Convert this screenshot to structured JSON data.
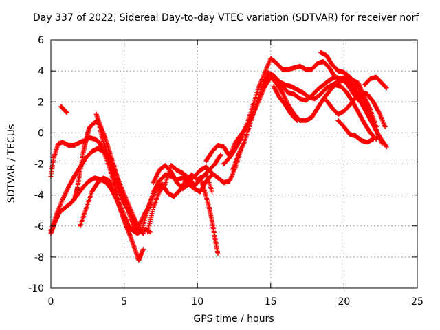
{
  "chart_data": {
    "type": "scatter",
    "title": "Day 337 of 2022, Sidereal Day-to-day VTEC variation (SDTVAR) for receiver norf",
    "xlabel": "GPS time / hours",
    "ylabel": "SDTVAR / TECUs",
    "xlim": [
      0,
      25
    ],
    "ylim": [
      -10,
      6
    ],
    "xticks": [
      0,
      5,
      10,
      15,
      20,
      25
    ],
    "yticks": [
      -10,
      -8,
      -6,
      -4,
      -2,
      0,
      2,
      4,
      6
    ],
    "grid": true,
    "marker": "+",
    "color": "#ff0000",
    "series": [
      {
        "x": [
          0.0,
          0.2,
          0.5,
          0.8,
          1.2,
          1.6,
          2.0,
          2.3,
          2.6,
          3.0,
          3.3,
          3.6,
          4.0,
          4.3,
          4.6,
          5.0,
          5.3,
          5.6,
          5.9,
          6.2,
          6.5,
          6.8
        ],
        "y": [
          -2.8,
          -1.6,
          -0.7,
          -0.6,
          -0.8,
          -0.8,
          -0.6,
          -0.5,
          -0.3,
          -0.4,
          -0.6,
          -1.2,
          -2.2,
          -3.2,
          -4.3,
          -5.3,
          -6.0,
          -6.3,
          -6.5,
          -6.3,
          -6.2,
          -6.4
        ]
      },
      {
        "x": [
          0.0,
          0.3,
          0.6,
          1.0,
          1.4,
          1.8,
          2.2,
          2.6,
          3.0,
          3.4,
          3.8,
          4.1,
          4.5,
          4.8,
          5.1,
          5.4,
          5.7,
          6.0,
          6.3
        ],
        "y": [
          -6.5,
          -5.7,
          -5.1,
          -4.8,
          -4.5,
          -4.0,
          -3.5,
          -3.1,
          -2.9,
          -3.0,
          -3.2,
          -3.6,
          -4.3,
          -5.1,
          -5.9,
          -6.6,
          -7.4,
          -8.2,
          -7.5
        ]
      },
      {
        "x": [
          0.0,
          0.4,
          0.8,
          1.2,
          1.6,
          2.0,
          2.4,
          2.8,
          3.2,
          3.6,
          4.0,
          4.4,
          4.8,
          5.2,
          5.6,
          6.0,
          6.3
        ],
        "y": [
          -6.3,
          -5.2,
          -4.3,
          -3.5,
          -2.8,
          -2.2,
          -1.6,
          -1.2,
          -1.0,
          -1.2,
          -1.7,
          -2.5,
          -3.5,
          -4.4,
          -5.3,
          -6.1,
          -6.5
        ]
      },
      {
        "x": [
          0.7,
          0.9,
          1.1
        ],
        "y": [
          1.7,
          1.5,
          1.3
        ]
      },
      {
        "x": [
          1.6,
          1.8,
          2.0,
          2.2,
          2.4,
          2.6,
          2.9,
          3.2,
          3.5,
          3.8,
          4.1,
          4.4,
          4.7,
          5.0,
          5.3,
          5.6,
          5.9,
          6.2
        ],
        "y": [
          -4.3,
          -3.6,
          -2.5,
          -1.3,
          -0.5,
          0.3,
          0.6,
          0.8,
          -0.3,
          -1.2,
          -2.0,
          -3.0,
          -3.8,
          -4.5,
          -5.0,
          -5.5,
          -6.0,
          -6.4
        ]
      },
      {
        "x": [
          2.0,
          2.4,
          2.8,
          3.2,
          3.6,
          4.0,
          4.4,
          4.8,
          5.2,
          5.6,
          6.0,
          6.4,
          6.8
        ],
        "y": [
          -6.0,
          -4.9,
          -3.8,
          -3.2,
          -2.9,
          -3.1,
          -4.0,
          -5.0,
          -5.9,
          -6.3,
          -6.0,
          -5.2,
          -4.6
        ]
      },
      {
        "x": [
          3.1,
          3.4,
          3.7,
          4.0,
          4.3,
          4.6,
          4.9,
          5.2,
          5.5,
          5.8
        ],
        "y": [
          1.2,
          0.4,
          -0.3,
          -1.2,
          -2.1,
          -3.1,
          -4.0,
          -4.8,
          -5.6,
          -6.3
        ]
      },
      {
        "x": [
          6.2,
          6.6,
          7.0,
          7.4,
          7.8,
          8.2,
          8.6,
          9.0,
          9.4,
          9.8,
          10.2,
          10.6,
          11.0,
          11.4,
          11.8,
          12.2,
          12.6,
          13.0
        ],
        "y": [
          -6.3,
          -5.0,
          -3.8,
          -3.1,
          -2.7,
          -2.8,
          -3.0,
          -2.9,
          -3.1,
          -2.8,
          -2.4,
          -2.2,
          -2.6,
          -2.9,
          -3.2,
          -3.1,
          -2.2,
          -1.0
        ]
      },
      {
        "x": [
          6.4,
          6.8,
          7.2,
          7.6,
          8.0,
          8.4,
          8.8,
          9.2,
          9.6,
          10.0,
          10.4,
          10.8,
          11.2,
          11.6
        ],
        "y": [
          -5.4,
          -4.4,
          -3.6,
          -3.3,
          -3.9,
          -4.1,
          -3.7,
          -3.1,
          -2.7,
          -3.0,
          -2.8,
          -2.4,
          -2.0,
          -1.4
        ]
      },
      {
        "x": [
          6.6,
          7.0,
          7.4,
          7.8,
          8.2,
          8.6,
          9.0,
          9.4,
          9.8,
          10.2,
          10.6,
          11.0
        ],
        "y": [
          -6.4,
          -4.8,
          -3.8,
          -3.3,
          -2.1,
          -2.4,
          -2.6,
          -2.9,
          -3.4,
          -3.0,
          -2.6,
          -3.8
        ]
      },
      {
        "x": [
          7.0,
          7.4,
          7.8,
          8.2,
          8.6,
          9.0,
          9.4,
          9.8,
          10.2,
          10.6,
          11.0
        ],
        "y": [
          -3.2,
          -2.4,
          -2.1,
          -2.5,
          -3.2,
          -3.6,
          -3.3,
          -3.6,
          -3.8,
          -3.1,
          -2.7
        ]
      },
      {
        "x": [
          10.2,
          10.5,
          10.8,
          11.0,
          11.2,
          11.4
        ],
        "y": [
          -2.9,
          -3.8,
          -4.8,
          -5.7,
          -6.8,
          -7.8
        ]
      },
      {
        "x": [
          10.6,
          11.0,
          11.4,
          11.8,
          12.2,
          12.6,
          13.0,
          13.4,
          13.8,
          14.2,
          14.6,
          15.0,
          15.4,
          15.8,
          16.2,
          16.6,
          17.0,
          17.4,
          17.8,
          18.2,
          18.6,
          19.0,
          19.4,
          19.8,
          20.2,
          20.6,
          21.0
        ],
        "y": [
          -1.8,
          -1.2,
          -0.8,
          -0.9,
          -1.5,
          -0.6,
          -0.1,
          0.5,
          1.2,
          2.1,
          3.0,
          3.6,
          3.2,
          3.0,
          2.6,
          2.5,
          2.2,
          2.1,
          2.4,
          2.8,
          3.1,
          3.4,
          3.6,
          3.5,
          3.2,
          2.6,
          2.1
        ]
      },
      {
        "x": [
          11.8,
          12.2,
          12.6,
          13.0,
          13.4,
          13.8,
          14.2,
          14.6,
          15.0,
          15.4,
          15.8,
          16.2,
          16.6,
          17.0,
          17.4,
          17.8,
          18.2,
          18.6,
          19.0,
          19.4,
          19.8,
          20.2,
          20.6,
          21.0,
          21.4,
          21.8,
          22.2,
          22.6
        ],
        "y": [
          -2.0,
          -1.6,
          -1.0,
          -0.3,
          0.6,
          1.8,
          3.0,
          3.9,
          4.8,
          4.5,
          4.1,
          4.1,
          4.2,
          4.3,
          4.1,
          4.1,
          4.5,
          4.6,
          4.2,
          3.6,
          3.5,
          3.6,
          3.1,
          2.3,
          1.6,
          0.9,
          0.2,
          -0.7
        ]
      },
      {
        "x": [
          12.4,
          12.8,
          13.2,
          13.6,
          14.0,
          14.4,
          14.8,
          15.2,
          15.6,
          16.0,
          16.4,
          16.8,
          17.2,
          17.6,
          18.0,
          18.4,
          18.8,
          19.2,
          19.6,
          20.0,
          20.4,
          20.8,
          21.2,
          21.6,
          22.0,
          22.4,
          22.9
        ],
        "y": [
          -2.4,
          -1.4,
          -0.6,
          0.6,
          1.8,
          3.0,
          3.9,
          3.7,
          3.3,
          3.1,
          3.0,
          2.8,
          2.6,
          2.3,
          2.2,
          2.5,
          2.9,
          3.1,
          3.3,
          3.4,
          3.1,
          2.6,
          1.9,
          1.2,
          0.5,
          -0.2,
          -0.9
        ]
      },
      {
        "x": [
          14.6,
          15.0,
          15.4,
          15.8,
          16.2,
          16.6,
          17.0,
          17.4,
          17.8,
          18.2,
          18.6,
          19.0,
          19.4,
          19.8,
          20.2,
          20.6,
          21.0,
          21.4,
          21.8,
          22.2
        ],
        "y": [
          3.3,
          3.8,
          3.2,
          2.6,
          1.8,
          1.2,
          0.8,
          0.8,
          1.0,
          1.6,
          2.2,
          2.7,
          3.1,
          3.0,
          2.6,
          2.0,
          1.3,
          0.6,
          0.0,
          -0.4
        ]
      },
      {
        "x": [
          15.2,
          15.6,
          16.0,
          16.4,
          16.8
        ],
        "y": [
          3.0,
          2.3,
          1.8,
          1.2,
          0.8
        ]
      },
      {
        "x": [
          18.4,
          18.8,
          19.2,
          19.6,
          20.0,
          20.4,
          20.8,
          21.2,
          21.6,
          22.0,
          22.4
        ],
        "y": [
          5.2,
          5.0,
          4.4,
          4.0,
          3.9,
          3.6,
          3.2,
          2.4,
          1.6,
          0.6,
          -0.3
        ]
      },
      {
        "x": [
          18.8,
          19.2,
          19.6,
          20.0,
          20.4,
          20.8,
          21.2,
          21.6,
          22.0,
          22.4,
          22.8
        ],
        "y": [
          2.1,
          1.6,
          1.2,
          1.4,
          1.8,
          2.3,
          2.6,
          2.5,
          2.0,
          1.3,
          0.4
        ]
      },
      {
        "x": [
          19.6,
          20.0,
          20.4,
          20.8,
          21.2,
          21.6,
          22.0
        ],
        "y": [
          0.8,
          0.4,
          -0.1,
          -0.2,
          -0.5,
          -0.6,
          -0.4
        ]
      },
      {
        "x": [
          20.2,
          20.6,
          21.0,
          21.4,
          21.8,
          22.2
        ],
        "y": [
          3.3,
          3.4,
          3.2,
          2.3,
          1.5,
          0.4
        ]
      },
      {
        "x": [
          21.4,
          21.8,
          22.2,
          22.6,
          22.9
        ],
        "y": [
          3.1,
          3.5,
          3.6,
          3.2,
          2.9
        ]
      }
    ]
  }
}
